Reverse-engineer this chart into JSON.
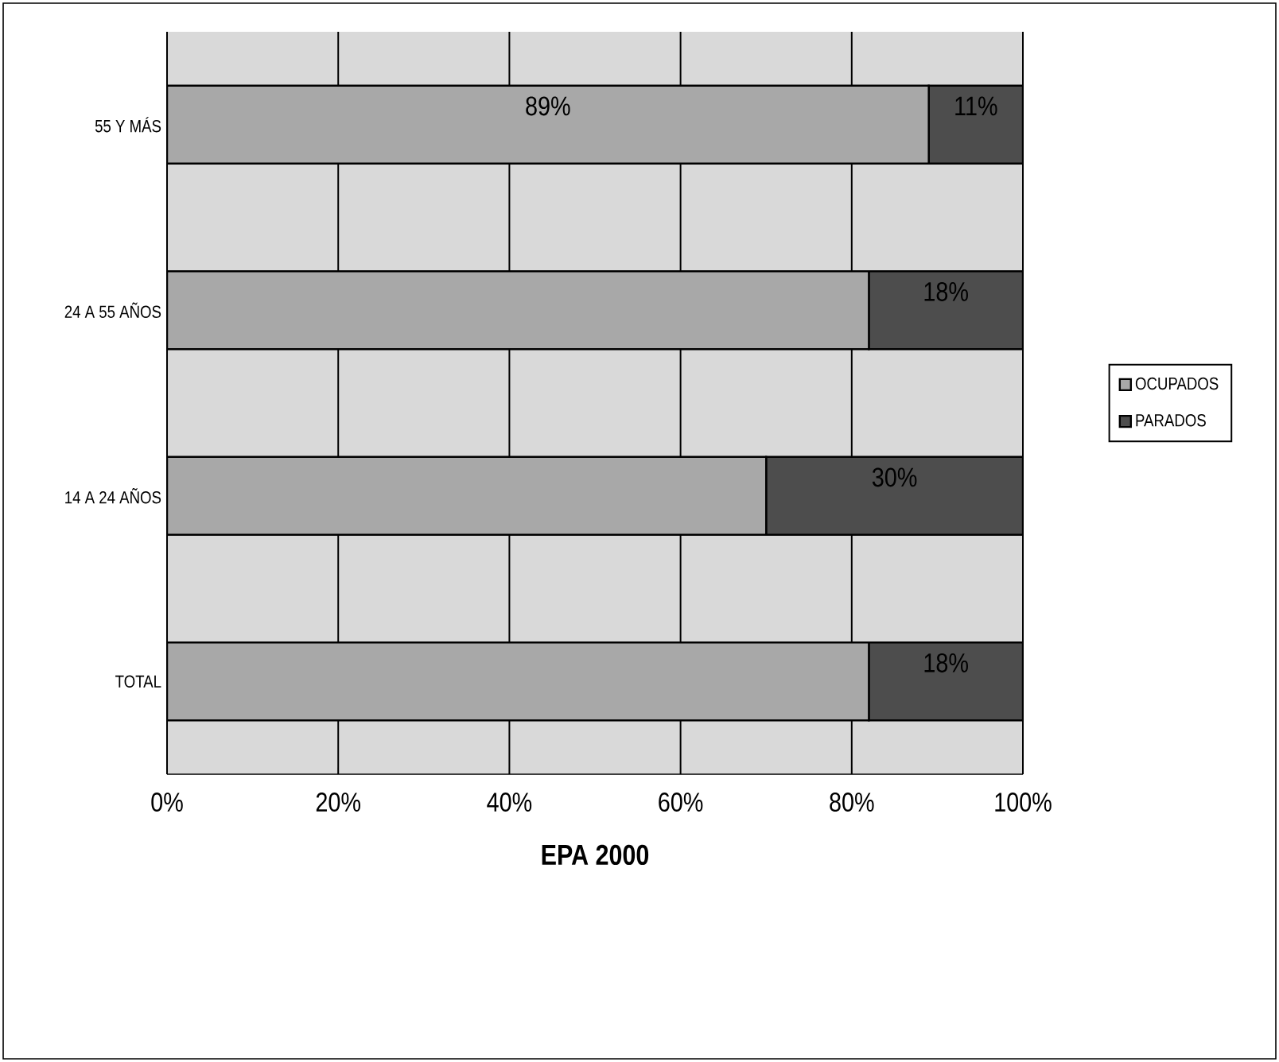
{
  "chart_data": {
    "type": "bar",
    "orientation": "horizontal",
    "stacked": true,
    "xlabel": "EPA 2000",
    "categories": [
      "55 Y MÁS",
      "24 A 55 AÑOS",
      "14 A 24 AÑOS",
      "TOTAL"
    ],
    "series": [
      {
        "name": "OCUPADOS",
        "color": "#a8a8a8",
        "values": [
          89,
          82,
          70,
          82
        ],
        "value_labels": [
          "89%",
          null,
          null,
          null
        ]
      },
      {
        "name": "PARADOS",
        "color": "#4d4d4d",
        "values": [
          11,
          18,
          30,
          18
        ],
        "value_labels": [
          "11%",
          "18%",
          "30%",
          "18%"
        ]
      }
    ],
    "xlim": [
      0,
      100
    ],
    "xticks": [
      {
        "value": 0,
        "label": "0%"
      },
      {
        "value": 20,
        "label": "20%"
      },
      {
        "value": 40,
        "label": "40%"
      },
      {
        "value": 60,
        "label": "60%"
      },
      {
        "value": 80,
        "label": "80%"
      },
      {
        "value": 100,
        "label": "100%"
      }
    ],
    "grid": "x",
    "legend": "right"
  }
}
